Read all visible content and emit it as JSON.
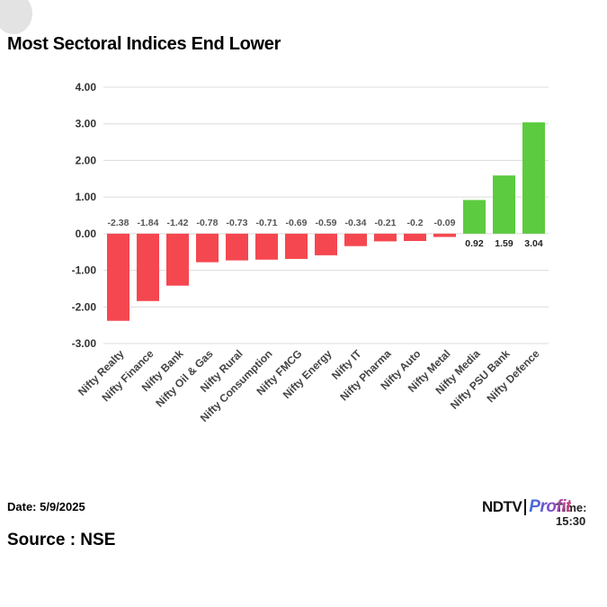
{
  "title": "Most Sectoral Indices End Lower",
  "footer": {
    "date": "Date: 5/9/2025",
    "source": "Source : NSE",
    "time": "Time: 15:30",
    "logo_brand": "NDTV",
    "logo_product": "Profit"
  },
  "colors": {
    "negative": "#f5474f",
    "positive": "#5ccb3f",
    "grid": "#dcdcdc"
  },
  "chart_data": {
    "type": "bar",
    "categories": [
      "Nifty Realty",
      "Nifty Finance",
      "Nifty Bank",
      "Nifty Oil & Gas",
      "Nifty Rural",
      "Nifty Consumption",
      "Nifty FMCG",
      "Nifty Energy",
      "Nifty IT",
      "Nifty Pharma",
      "Nifty Auto",
      "Nifty Metal",
      "Nifty Media",
      "Nifty PSU Bank",
      "Nifty Defence"
    ],
    "values": [
      -2.38,
      -1.84,
      -1.42,
      -0.78,
      -0.73,
      -0.71,
      -0.69,
      -0.59,
      -0.34,
      -0.21,
      -0.2,
      -0.09,
      0.92,
      1.59,
      3.04
    ],
    "data_labels": [
      "-2.38",
      "-1.84",
      "-1.42",
      "-0.78",
      "-0.73",
      "-0.71",
      "-0.69",
      "-0.59",
      "-0.34",
      "-0.21",
      "-0.2",
      "-0.09",
      "0.92",
      "1.59",
      "3.04"
    ],
    "yticks": [
      4,
      3,
      2,
      1,
      0,
      -1,
      -2,
      -3
    ],
    "ytick_labels": [
      "4.00",
      "3.00",
      "2.00",
      "1.00",
      "0.00",
      "-1.00",
      "-2.00",
      "-3.00"
    ],
    "ylim": [
      -3,
      4
    ],
    "grid": true,
    "legend": "none",
    "xlabel": "",
    "ylabel": ""
  }
}
